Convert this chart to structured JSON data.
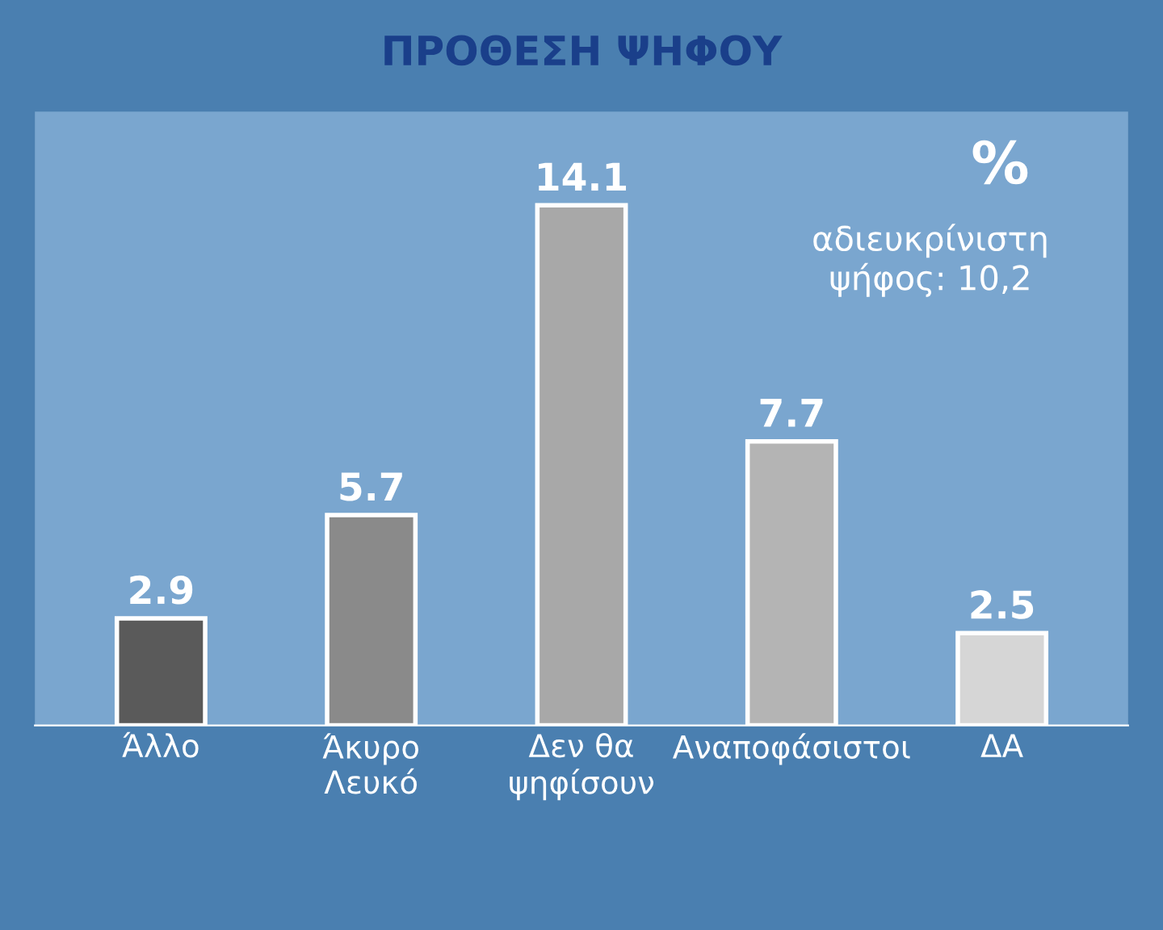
{
  "chart_data": {
    "type": "bar",
    "title": "ΠΡΟΘΕΣΗ ΨΗΦΟΥ",
    "categories": [
      "Άλλο",
      "Άκυρο\nΛευκό",
      "Δεν θα\nψηφίσουν",
      "Αναποφάσιστοι",
      "ΔΑ"
    ],
    "values": [
      2.9,
      5.7,
      14.1,
      7.7,
      2.5
    ],
    "colors": [
      "#5a5a5a",
      "#8a8a8a",
      "#a8a8a8",
      "#b4b4b4",
      "#d6d6d6"
    ],
    "data_labels": true,
    "annotations": [
      "%",
      "αδιευκρίνιστη\nψήφος: 10,2"
    ]
  }
}
